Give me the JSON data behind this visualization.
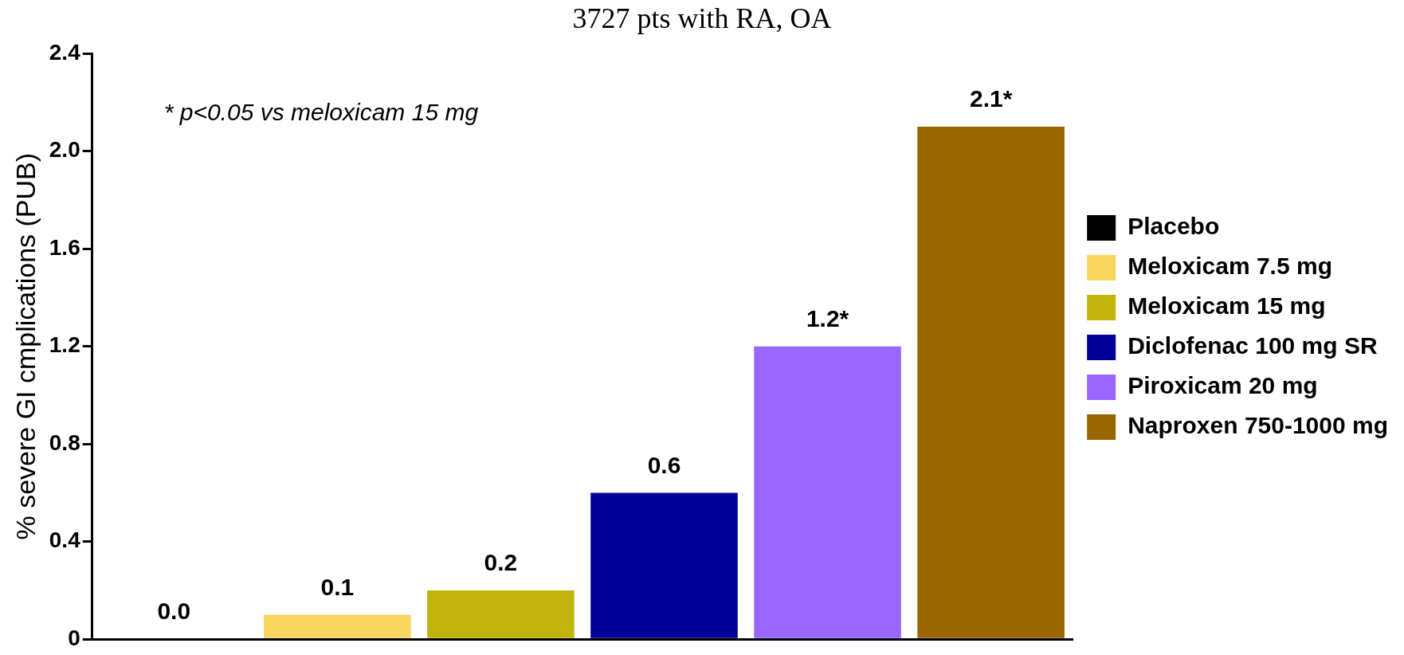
{
  "chart_data": {
    "type": "bar",
    "title": "3727 pts with RA, OA",
    "ylabel": "% severe GI cmplications (PUB)",
    "categories": [
      null,
      null,
      null,
      null,
      null,
      null
    ],
    "series": [
      {
        "name": "Placebo",
        "color": "#000000",
        "values": [
          0.0,
          null,
          null,
          null,
          null,
          null
        ],
        "value_labels": [
          "0.0",
          null,
          null,
          null,
          null,
          null
        ]
      },
      {
        "name": "Meloxicam 7.5 mg",
        "color": "#f9d55e",
        "values": [
          null,
          0.1,
          null,
          null,
          null,
          null
        ],
        "value_labels": [
          null,
          "0.1",
          null,
          null,
          null,
          null
        ]
      },
      {
        "name": "Meloxicam 15 mg",
        "color": "#c0b40a",
        "values": [
          null,
          null,
          0.2,
          null,
          null,
          null
        ],
        "value_labels": [
          null,
          null,
          "0.2",
          null,
          null,
          null
        ]
      },
      {
        "name": "Diclofenac 100 mg SR",
        "color": "#000099",
        "values": [
          null,
          null,
          null,
          0.6,
          null,
          null
        ],
        "value_labels": [
          null,
          null,
          null,
          "0.6",
          null,
          null
        ]
      },
      {
        "name": "Piroxicam 20 mg",
        "color": "#9966ff",
        "values": [
          null,
          null,
          null,
          null,
          1.2,
          null
        ],
        "value_labels": [
          null,
          null,
          null,
          null,
          "1.2*",
          null
        ]
      },
      {
        "name": "Naproxen 750-1000 mg",
        "color": "#996600",
        "values": [
          null,
          null,
          null,
          null,
          null,
          2.1
        ],
        "value_labels": [
          null,
          null,
          null,
          null,
          null,
          "2.1*"
        ]
      }
    ],
    "ylim": [
      0,
      2.4
    ],
    "yticks": [
      0,
      0.4,
      0.8,
      1.2,
      1.6,
      {
        "value": 2,
        "label": "2.0"
      },
      2.4
    ],
    "annotations": [
      "* p<0.05 vs meloxicam 15 mg"
    ],
    "grid": false,
    "legend": "right",
    "tick_labels": "y"
  }
}
